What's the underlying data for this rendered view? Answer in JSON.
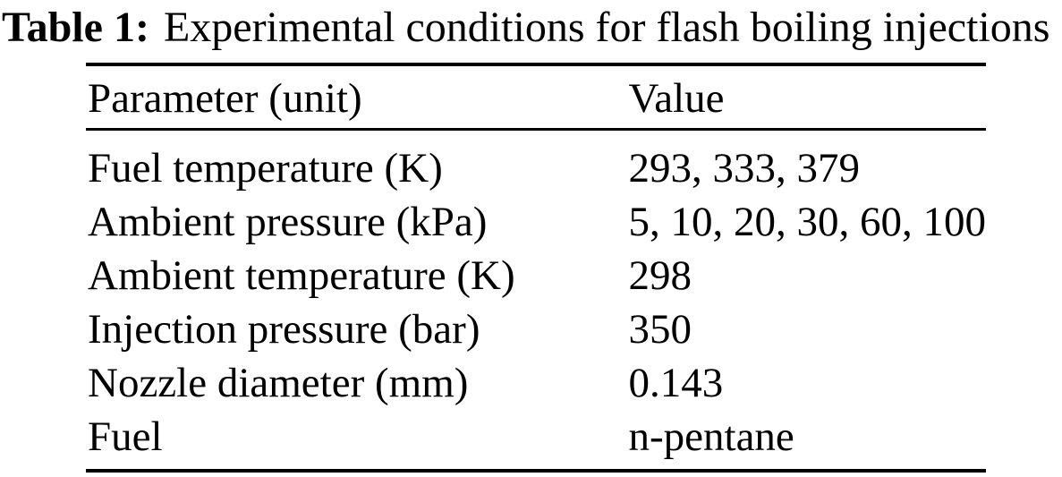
{
  "page": {
    "background_color": "#ffffff",
    "text_color": "#000000"
  },
  "caption": {
    "label": "Table 1:",
    "text": "Experimental conditions for flash boiling injections"
  },
  "table": {
    "columns": [
      {
        "label": "Parameter (unit)"
      },
      {
        "label": "Value"
      }
    ],
    "rows": [
      {
        "parameter": "Fuel temperature (K)",
        "value": "293, 333, 379"
      },
      {
        "parameter": "Ambient pressure (kPa)",
        "value": "5, 10, 20, 30, 60, 100"
      },
      {
        "parameter": "Ambient temperature (K)",
        "value": "298"
      },
      {
        "parameter": "Injection pressure (bar)",
        "value": "350"
      },
      {
        "parameter": "Nozzle diameter (mm)",
        "value": "0.143"
      },
      {
        "parameter": "Fuel",
        "value": "n-pentane"
      }
    ]
  }
}
